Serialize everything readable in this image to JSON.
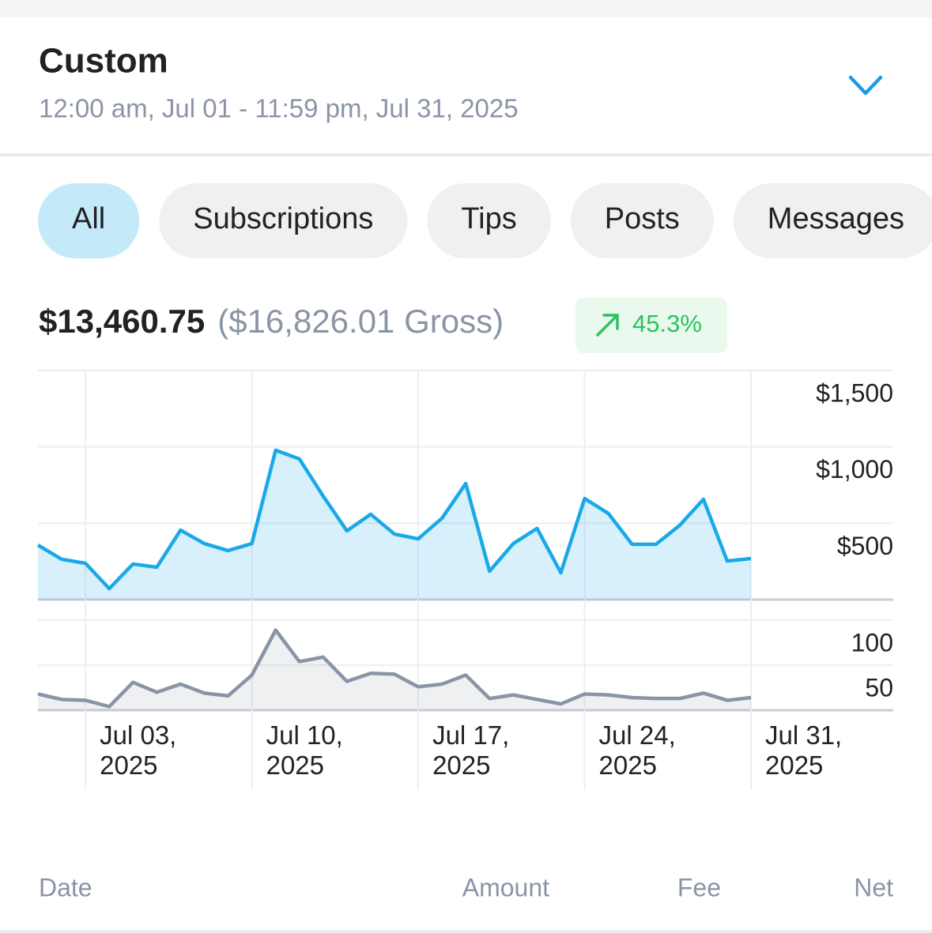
{
  "header": {
    "title": "Custom",
    "subtitle": "12:00 am, Jul 01 - 11:59 pm, Jul 31, 2025"
  },
  "tabs": [
    "All",
    "Subscriptions",
    "Tips",
    "Posts",
    "Messages"
  ],
  "summary": {
    "net": "$13,460.75",
    "gross": "($16,826.01 Gross)",
    "change": "45.3%"
  },
  "chart_data": {
    "type": "line",
    "categories": [
      null,
      null,
      "Jul 03, 2025",
      null,
      null,
      null,
      null,
      null,
      null,
      "Jul 10, 2025",
      null,
      null,
      null,
      null,
      null,
      null,
      "Jul 17, 2025",
      null,
      null,
      null,
      null,
      null,
      null,
      "Jul 24, 2025",
      null,
      null,
      null,
      null,
      null,
      null,
      "Jul 31, 2025"
    ],
    "series": [
      {
        "color": "#1aa9e8",
        "values": [
          357,
          264,
          238,
          72,
          233,
          212,
          455,
          367,
          321,
          367,
          978,
          921,
          678,
          450,
          559,
          429,
          398,
          533,
          760,
          186,
          367,
          466,
          176,
          662,
          564,
          362,
          362,
          486,
          657,
          253,
          269
        ]
      },
      {
        "color": "#8a94a6",
        "axis": "y2",
        "values": [
          18,
          12,
          11,
          4,
          31,
          20,
          29,
          19,
          16,
          39,
          89,
          54,
          59,
          32,
          41,
          40,
          26,
          29,
          39,
          13,
          17,
          12,
          7,
          18,
          17,
          14,
          13,
          13,
          19,
          11,
          14
        ]
      }
    ],
    "ylim": [
      0,
      1500
    ],
    "yticks": [
      {
        "value": 500,
        "label": "$500"
      },
      {
        "value": 1000,
        "label": "$1,000"
      },
      {
        "value": 1500,
        "label": "$1,500"
      }
    ],
    "y2lim": [
      0,
      100
    ],
    "y2ticks": [
      50,
      100
    ],
    "grid": true
  },
  "table": {
    "columns": [
      "Date",
      "Amount",
      "Fee",
      "Net"
    ]
  }
}
